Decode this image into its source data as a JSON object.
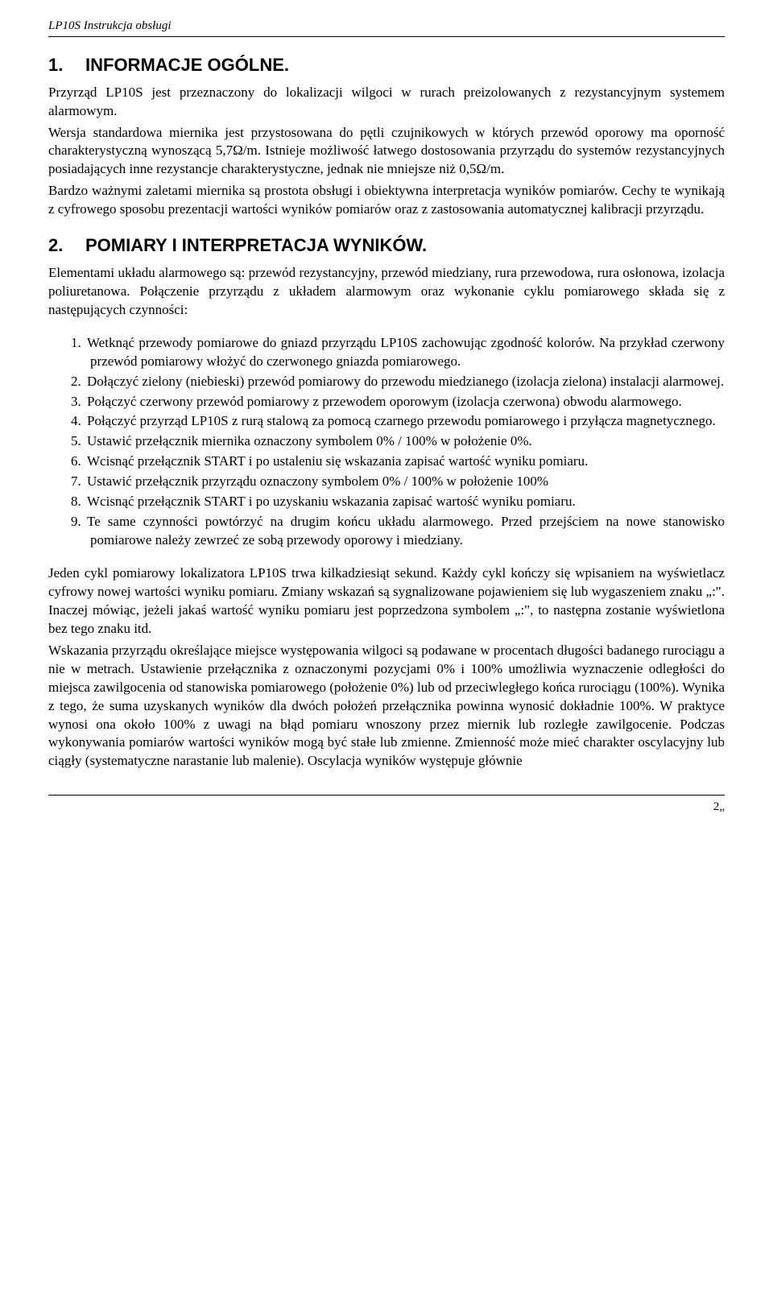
{
  "header": {
    "doc_title": "LP10S Instrukcja obsługi"
  },
  "section1": {
    "number": "1.",
    "heading": "INFORMACJE OGÓLNE.",
    "p1a": "Przyrząd LP10S jest przeznaczony do lokalizacji wilgoci w rurach preizolowanych z rezystancyjnym systemem alarmowym.",
    "p1b": "Wersja standardowa miernika jest przystosowana do pętli czujnikowych w których przewód oporowy ma oporność charakterystyczną wynoszącą 5,7Ω/m. Istnieje możliwość łatwego dostosowania przyrządu do systemów rezystancyjnych posiadających inne rezystancje charakterystyczne, jednak nie mniejsze niż 0,5Ω/m.",
    "p1c": "Bardzo ważnymi zaletami miernika są prostota obsługi i obiektywna interpretacja wyników pomiarów. Cechy te wynikają z cyfrowego sposobu prezentacji wartości wyników pomiarów oraz z zastosowania automatycznej kalibracji przyrządu."
  },
  "section2": {
    "number": "2.",
    "heading": "POMIARY I INTERPRETACJA WYNIKÓW.",
    "intro": "Elementami układu alarmowego są: przewód rezystancyjny, przewód miedziany, rura przewodowa, rura osłonowa, izolacja poliuretanowa. Połączenie przyrządu z układem alarmowym oraz wykonanie cyklu pomiarowego składa się z następujących czynności:",
    "list": [
      {
        "n": "1.",
        "t": "Wetknąć przewody pomiarowe do gniazd przyrządu LP10S zachowując zgodność kolorów. Na przykład czerwony przewód pomiarowy włożyć do czerwonego gniazda pomiarowego."
      },
      {
        "n": "2.",
        "t": "Dołączyć zielony (niebieski) przewód pomiarowy do przewodu miedzianego (izolacja zielona) instalacji alarmowej."
      },
      {
        "n": "3.",
        "t": "Połączyć czerwony przewód pomiarowy z przewodem oporowym (izolacja czerwona) obwodu alarmowego."
      },
      {
        "n": "4.",
        "t": "Połączyć przyrząd LP10S z rurą stalową za pomocą czarnego przewodu pomiarowego i przyłącza magnetycznego."
      },
      {
        "n": "5.",
        "t": "Ustawić przełącznik miernika oznaczony  symbolem 0% / 100% w położenie 0%."
      },
      {
        "n": "6.",
        "t": "Wcisnąć przełącznik START i po ustaleniu się wskazania zapisać wartość wyniku pomiaru."
      },
      {
        "n": "7.",
        "t": "Ustawić przełącznik przyrządu oznaczony  symbolem 0% / 100% w położenie 100%"
      },
      {
        "n": "8.",
        "t": "Wcisnąć przełącznik START i po uzyskaniu wskazania zapisać wartość wyniku pomiaru."
      },
      {
        "n": "9.",
        "t": "Te same czynności powtórzyć na drugim końcu układu alarmowego. Przed przejściem na nowe stanowisko pomiarowe należy zewrzeć ze sobą przewody oporowy i miedziany."
      }
    ],
    "outro1": "Jeden cykl pomiarowy lokalizatora LP10S trwa kilkadziesiąt sekund. Każdy cykl kończy się wpisaniem na wyświetlacz cyfrowy nowej wartości wyniku pomiaru. Zmiany wskazań są sygnalizowane pojawieniem się lub wygaszeniem znaku „:\". Inaczej mówiąc, jeżeli jakaś wartość wyniku pomiaru jest poprzedzona symbolem „:\", to następna zostanie wyświetlona bez tego znaku itd.",
    "outro2": "Wskazania przyrządu określające miejsce występowania wilgoci są podawane w procentach długości badanego rurociągu a nie w metrach. Ustawienie przełącznika z oznaczonymi pozycjami 0% i 100% umożliwia wyznaczenie odległości do miejsca zawilgocenia od stanowiska pomiarowego (położenie 0%) lub od przeciwległego końca rurociągu (100%). Wynika z tego, że suma uzyskanych wyników dla dwóch położeń przełącznika powinna wynosić dokładnie 100%. W praktyce wynosi ona około 100% z uwagi na błąd pomiaru wnoszony przez miernik lub rozległe zawilgocenie. Podczas wykonywania pomiarów wartości wyników mogą być stałe lub zmienne. Zmienność może mieć charakter oscylacyjny lub ciągły (systematyczne narastanie lub malenie). Oscylacja wyników występuje głównie"
  },
  "footer": {
    "page": "2„"
  }
}
